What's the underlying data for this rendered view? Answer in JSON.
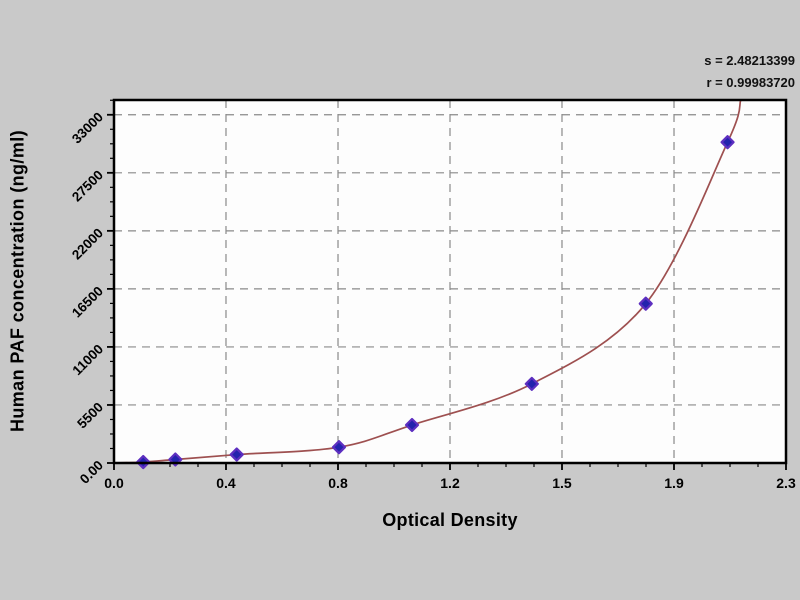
{
  "colors": {
    "background": "#c9c9c9",
    "plot_bg": "#fdfdfd",
    "frame": "#000000",
    "grid": "#8a8a8a",
    "curve": "#9e5050",
    "point_fill": "#2323ad",
    "point_stroke": "#5d2fc0",
    "text": "#000000"
  },
  "annotation": {
    "line1": "s = 2.48213399",
    "line2": "r = 0.99983720"
  },
  "chart_data": {
    "type": "scatter",
    "title": "",
    "xlabel": "Optical Density",
    "ylabel": "Human PAF concentration (ng/ml)",
    "xlim": [
      0,
      2.3
    ],
    "ylim": [
      0,
      34400
    ],
    "x_major_ticks": [
      0,
      0.3833,
      0.7667,
      1.15,
      1.5333,
      1.9167,
      2.3
    ],
    "x_tick_labels": [
      "0.0",
      "0.4",
      "0.8",
      "1.2",
      "1.5",
      "1.9",
      "2.3"
    ],
    "y_major_ticks": [
      0,
      5500,
      11000,
      16500,
      22000,
      27500,
      33000
    ],
    "y_tick_labels": [
      "0.00",
      "5500",
      "11000",
      "16500",
      "22000",
      "27500",
      "33000"
    ],
    "minor_per_major": 4,
    "grid": "dashed-major",
    "legend": "none",
    "series": [
      {
        "name": "standard-points",
        "marker": "diamond",
        "x": [
          0.1,
          0.21,
          0.42,
          0.77,
          1.02,
          1.43,
          1.82,
          2.1
        ],
        "y": [
          90,
          330,
          800,
          1500,
          3600,
          7500,
          15100,
          30400
        ]
      }
    ],
    "fit_curve": {
      "x_start": 0.0,
      "y_start": 0,
      "x_end": 2.145,
      "y_end": 34400
    },
    "fit_stats": {
      "s": "2.48213399",
      "r": "0.99983720"
    }
  }
}
